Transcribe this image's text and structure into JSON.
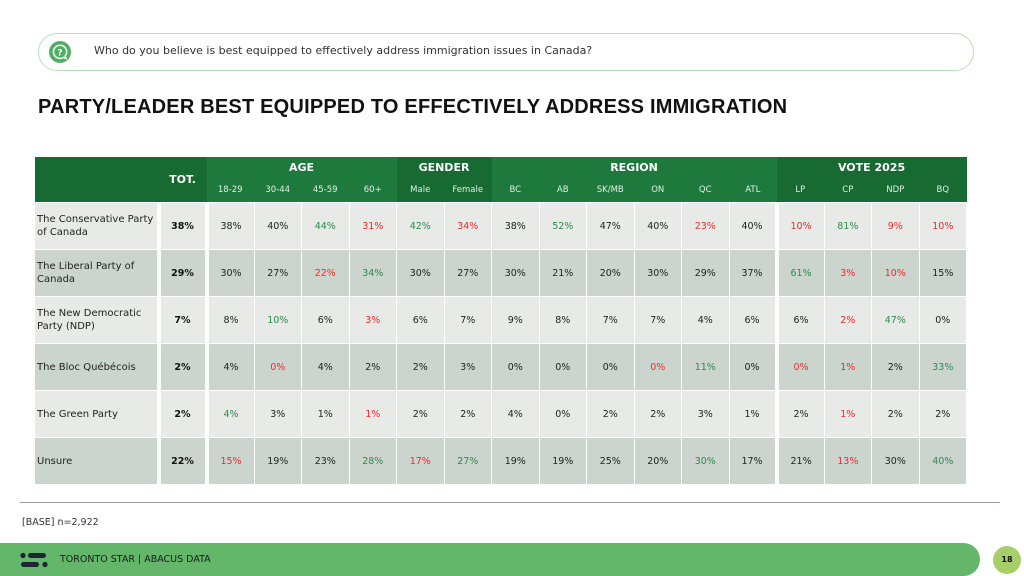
{
  "question": {
    "icon": "question-bubble-icon",
    "text": "Who do you believe is best equipped to effectively address immigration issues in Canada?"
  },
  "title": "PARTY/LEADER BEST EQUIPPED TO EFFECTIVELY ADDRESS IMMIGRATION",
  "table": {
    "total_header": "TOT.",
    "groups": [
      {
        "label": "AGE",
        "columns": [
          "18-29",
          "30-44",
          "45-59",
          "60+"
        ]
      },
      {
        "label": "GENDER",
        "columns": [
          "Male",
          "Female"
        ]
      },
      {
        "label": "REGION",
        "columns": [
          "BC",
          "AB",
          "SK/MB",
          "ON",
          "QC",
          "ATL"
        ]
      },
      {
        "label": "VOTE 2025",
        "columns": [
          "LP",
          "CP",
          "NDP",
          "BQ"
        ]
      }
    ],
    "rows": [
      {
        "label": "The Conservative Party of Canada",
        "total": "38%",
        "values": [
          "38%",
          "40%",
          "44%",
          "31%",
          "42%",
          "34%",
          "38%",
          "52%",
          "47%",
          "40%",
          "23%",
          "40%",
          "10%",
          "81%",
          "9%",
          "10%"
        ],
        "flags": [
          "neu",
          "neu",
          "pos",
          "neg",
          "pos",
          "neg",
          "neu",
          "pos",
          "neu",
          "neu",
          "neg",
          "neu",
          "neg",
          "pos",
          "neg",
          "neg"
        ]
      },
      {
        "label": "The Liberal Party of Canada",
        "total": "29%",
        "values": [
          "30%",
          "27%",
          "22%",
          "34%",
          "30%",
          "27%",
          "30%",
          "21%",
          "20%",
          "30%",
          "29%",
          "37%",
          "61%",
          "3%",
          "10%",
          "15%"
        ],
        "flags": [
          "neu",
          "neu",
          "neg",
          "pos",
          "neu",
          "neu",
          "neu",
          "neu",
          "neu",
          "neu",
          "neu",
          "neu",
          "pos",
          "neg",
          "neg",
          "neu"
        ]
      },
      {
        "label": "The New Democratic Party (NDP)",
        "total": "7%",
        "values": [
          "8%",
          "10%",
          "6%",
          "3%",
          "6%",
          "7%",
          "9%",
          "8%",
          "7%",
          "7%",
          "4%",
          "6%",
          "6%",
          "2%",
          "47%",
          "0%"
        ],
        "flags": [
          "neu",
          "pos",
          "neu",
          "neg",
          "neu",
          "neu",
          "neu",
          "neu",
          "neu",
          "neu",
          "neu",
          "neu",
          "neu",
          "neg",
          "pos",
          "neu"
        ]
      },
      {
        "label": "The Bloc Québécois",
        "total": "2%",
        "values": [
          "4%",
          "0%",
          "4%",
          "2%",
          "2%",
          "3%",
          "0%",
          "0%",
          "0%",
          "0%",
          "11%",
          "0%",
          "0%",
          "1%",
          "2%",
          "33%"
        ],
        "flags": [
          "neu",
          "neg",
          "neu",
          "neu",
          "neu",
          "neu",
          "neu",
          "neu",
          "neu",
          "neg",
          "pos",
          "neu",
          "neg",
          "neg",
          "neu",
          "pos"
        ]
      },
      {
        "label": "The Green Party",
        "total": "2%",
        "values": [
          "4%",
          "3%",
          "1%",
          "1%",
          "2%",
          "2%",
          "4%",
          "0%",
          "2%",
          "2%",
          "3%",
          "1%",
          "2%",
          "1%",
          "2%",
          "2%"
        ],
        "flags": [
          "pos",
          "neu",
          "neu",
          "neg",
          "neu",
          "neu",
          "neu",
          "neu",
          "neu",
          "neu",
          "neu",
          "neu",
          "neu",
          "neg",
          "neu",
          "neu"
        ]
      },
      {
        "label": "Unsure",
        "total": "22%",
        "values": [
          "15%",
          "19%",
          "23%",
          "28%",
          "17%",
          "27%",
          "19%",
          "19%",
          "25%",
          "20%",
          "30%",
          "17%",
          "21%",
          "13%",
          "30%",
          "40%"
        ],
        "flags": [
          "neg",
          "neu",
          "neu",
          "pos",
          "neg",
          "pos",
          "neu",
          "neu",
          "neu",
          "neu",
          "pos",
          "neu",
          "neu",
          "neg",
          "neu",
          "pos"
        ]
      }
    ]
  },
  "colors": {
    "positive": "#2e8b4e",
    "negative": "#ee2b2b",
    "header_green": "#1e7a3c",
    "header_green_dark": "#186a33",
    "footer_green": "#63b66a"
  },
  "base": "[BASE] n=2,922",
  "footer": {
    "logo": "abacus-logo-icon",
    "text": "TORONTO STAR  |  ABACUS DATA",
    "page_number": "18"
  }
}
